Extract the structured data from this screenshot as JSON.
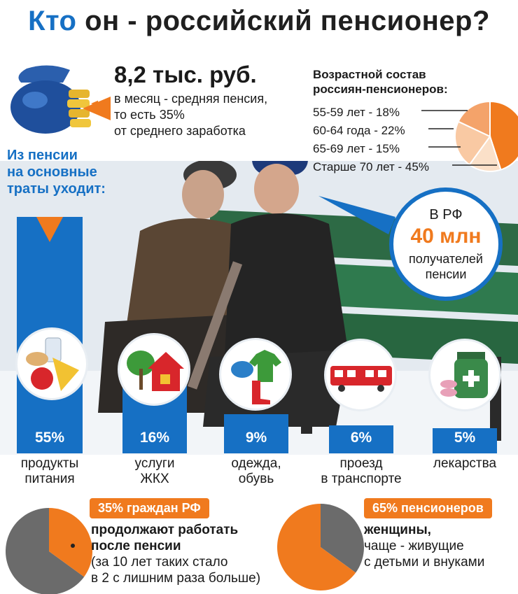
{
  "title": {
    "part1": "Кто",
    "part2": " он - российский пенсионер?"
  },
  "pension": {
    "amount": "8,2 тыс. руб.",
    "desc_line1": "в месяц - средняя пенсия,",
    "desc_line2": "то есть 35%",
    "desc_line3": "от среднего заработка"
  },
  "spending": {
    "title_line1": "Из пенсии",
    "title_line2": "на основные",
    "title_line3": "траты уходит:",
    "items": [
      {
        "pct": "55%",
        "value": 55,
        "label_line1": "продукты",
        "label_line2": "питания",
        "icon": "food-icon"
      },
      {
        "pct": "16%",
        "value": 16,
        "label_line1": "услуги",
        "label_line2": "ЖКХ",
        "icon": "house-icon"
      },
      {
        "pct": "9%",
        "value": 9,
        "label_line1": "одежда,",
        "label_line2": "обувь",
        "icon": "clothing-icon"
      },
      {
        "pct": "6%",
        "value": 6,
        "label_line1": "проезд",
        "label_line2": "в транспорте",
        "icon": "tram-icon"
      },
      {
        "pct": "5%",
        "value": 5,
        "label_line1": "лекарства",
        "label_line2": "",
        "icon": "medicine-icon"
      }
    ]
  },
  "age": {
    "title_line1": "Возрастной состав",
    "title_line2": "россиян-пенсионеров:",
    "rows": [
      {
        "text": "55-59 лет - 18%",
        "value": 18
      },
      {
        "text": "60-64 года - 22%",
        "value": 22
      },
      {
        "text": "65-69 лет - 15%",
        "value": 15
      },
      {
        "text": "Старше 70 лет - 45%",
        "value": 45
      }
    ]
  },
  "recipients": {
    "line1": "В РФ",
    "line2": "40 млн",
    "line3a": "получателей",
    "line3b": "пенсии"
  },
  "working": {
    "pill": "35% граждан РФ",
    "value": 35,
    "bold_line1": "продолжают работать",
    "bold_line2": "после пенсии",
    "line3": "(за 10 лет таких стало",
    "line4": "в 2 с лишним раза больше)"
  },
  "women": {
    "pill": "65% пенсионеров",
    "value": 65,
    "bold_line1": "женщины,",
    "line2": "чаще - живущие",
    "line3": "с детьми и внуками"
  },
  "colors": {
    "blue": "#1670c4",
    "orange": "#f07a1e",
    "gray": "#6b6b6b"
  }
}
